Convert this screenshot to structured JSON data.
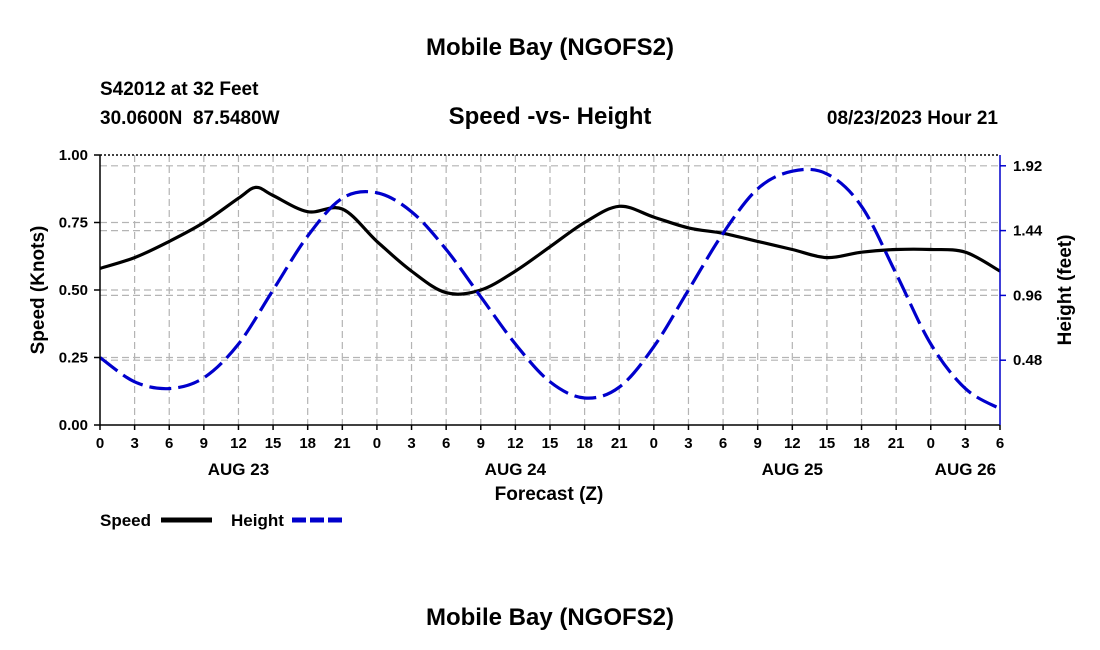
{
  "page": {
    "main_title": "Mobile Bay (NGOFS2)",
    "station_line": "S42012 at 32 Feet",
    "coords_line": "30.0600N  87.5480W",
    "date_line": "08/23/2023 Hour 21",
    "bottom_title": "Mobile Bay (NGOFS2)"
  },
  "chart_data": {
    "type": "line",
    "title": "Speed -vs- Height",
    "xlabel": "Forecast (Z)",
    "ylabel_left": "Speed (Knots)",
    "ylabel_right": "Height (feet)",
    "x_range_hours": [
      0,
      78
    ],
    "ylim_left": [
      0,
      1.0
    ],
    "ylim_right": [
      0,
      2.0
    ],
    "yticks_left": [
      "0.00",
      "0.25",
      "0.50",
      "0.75",
      "1.00"
    ],
    "yticks_right": [
      "0.48",
      "0.96",
      "1.44",
      "1.92"
    ],
    "yticks_right_values": [
      0.48,
      0.96,
      1.44,
      1.92
    ],
    "xtick_labels": [
      "0",
      "3",
      "6",
      "9",
      "12",
      "15",
      "18",
      "21",
      "0",
      "3",
      "6",
      "9",
      "12",
      "15",
      "18",
      "21",
      "0",
      "3",
      "6",
      "9",
      "12",
      "15",
      "18",
      "21",
      "0",
      "3",
      "6"
    ],
    "date_labels": [
      {
        "label": "AUG 23",
        "hour": 12
      },
      {
        "label": "AUG 24",
        "hour": 36
      },
      {
        "label": "AUG 25",
        "hour": 60
      },
      {
        "label": "AUG 26",
        "hour": 75
      }
    ],
    "grid": true,
    "legend_position": "bottom-left",
    "series": [
      {
        "name": "Speed",
        "axis": "left",
        "color": "#000000",
        "style": "solid",
        "x": [
          0,
          3,
          6,
          9,
          12,
          13.5,
          15,
          18,
          21,
          24,
          27,
          30,
          33,
          36,
          39,
          42,
          45,
          48,
          51,
          54,
          57,
          60,
          63,
          66,
          69,
          72,
          75,
          78
        ],
        "y": [
          0.58,
          0.62,
          0.68,
          0.75,
          0.84,
          0.88,
          0.85,
          0.79,
          0.8,
          0.68,
          0.57,
          0.49,
          0.5,
          0.57,
          0.66,
          0.75,
          0.81,
          0.77,
          0.73,
          0.71,
          0.68,
          0.65,
          0.62,
          0.64,
          0.65,
          0.65,
          0.64,
          0.57
        ]
      },
      {
        "name": "Height",
        "axis": "right",
        "color": "#0000cc",
        "style": "dashed",
        "x": [
          0,
          3,
          6,
          9,
          12,
          15,
          18,
          21,
          24,
          27,
          30,
          33,
          36,
          39,
          42,
          45,
          48,
          51,
          54,
          57,
          60,
          63,
          66,
          69,
          72,
          75,
          78
        ],
        "y": [
          0.5,
          0.32,
          0.27,
          0.35,
          0.6,
          1.0,
          1.4,
          1.68,
          1.72,
          1.58,
          1.3,
          0.95,
          0.6,
          0.32,
          0.2,
          0.28,
          0.58,
          1.0,
          1.42,
          1.75,
          1.88,
          1.86,
          1.62,
          1.12,
          0.6,
          0.27,
          0.12
        ]
      }
    ]
  }
}
